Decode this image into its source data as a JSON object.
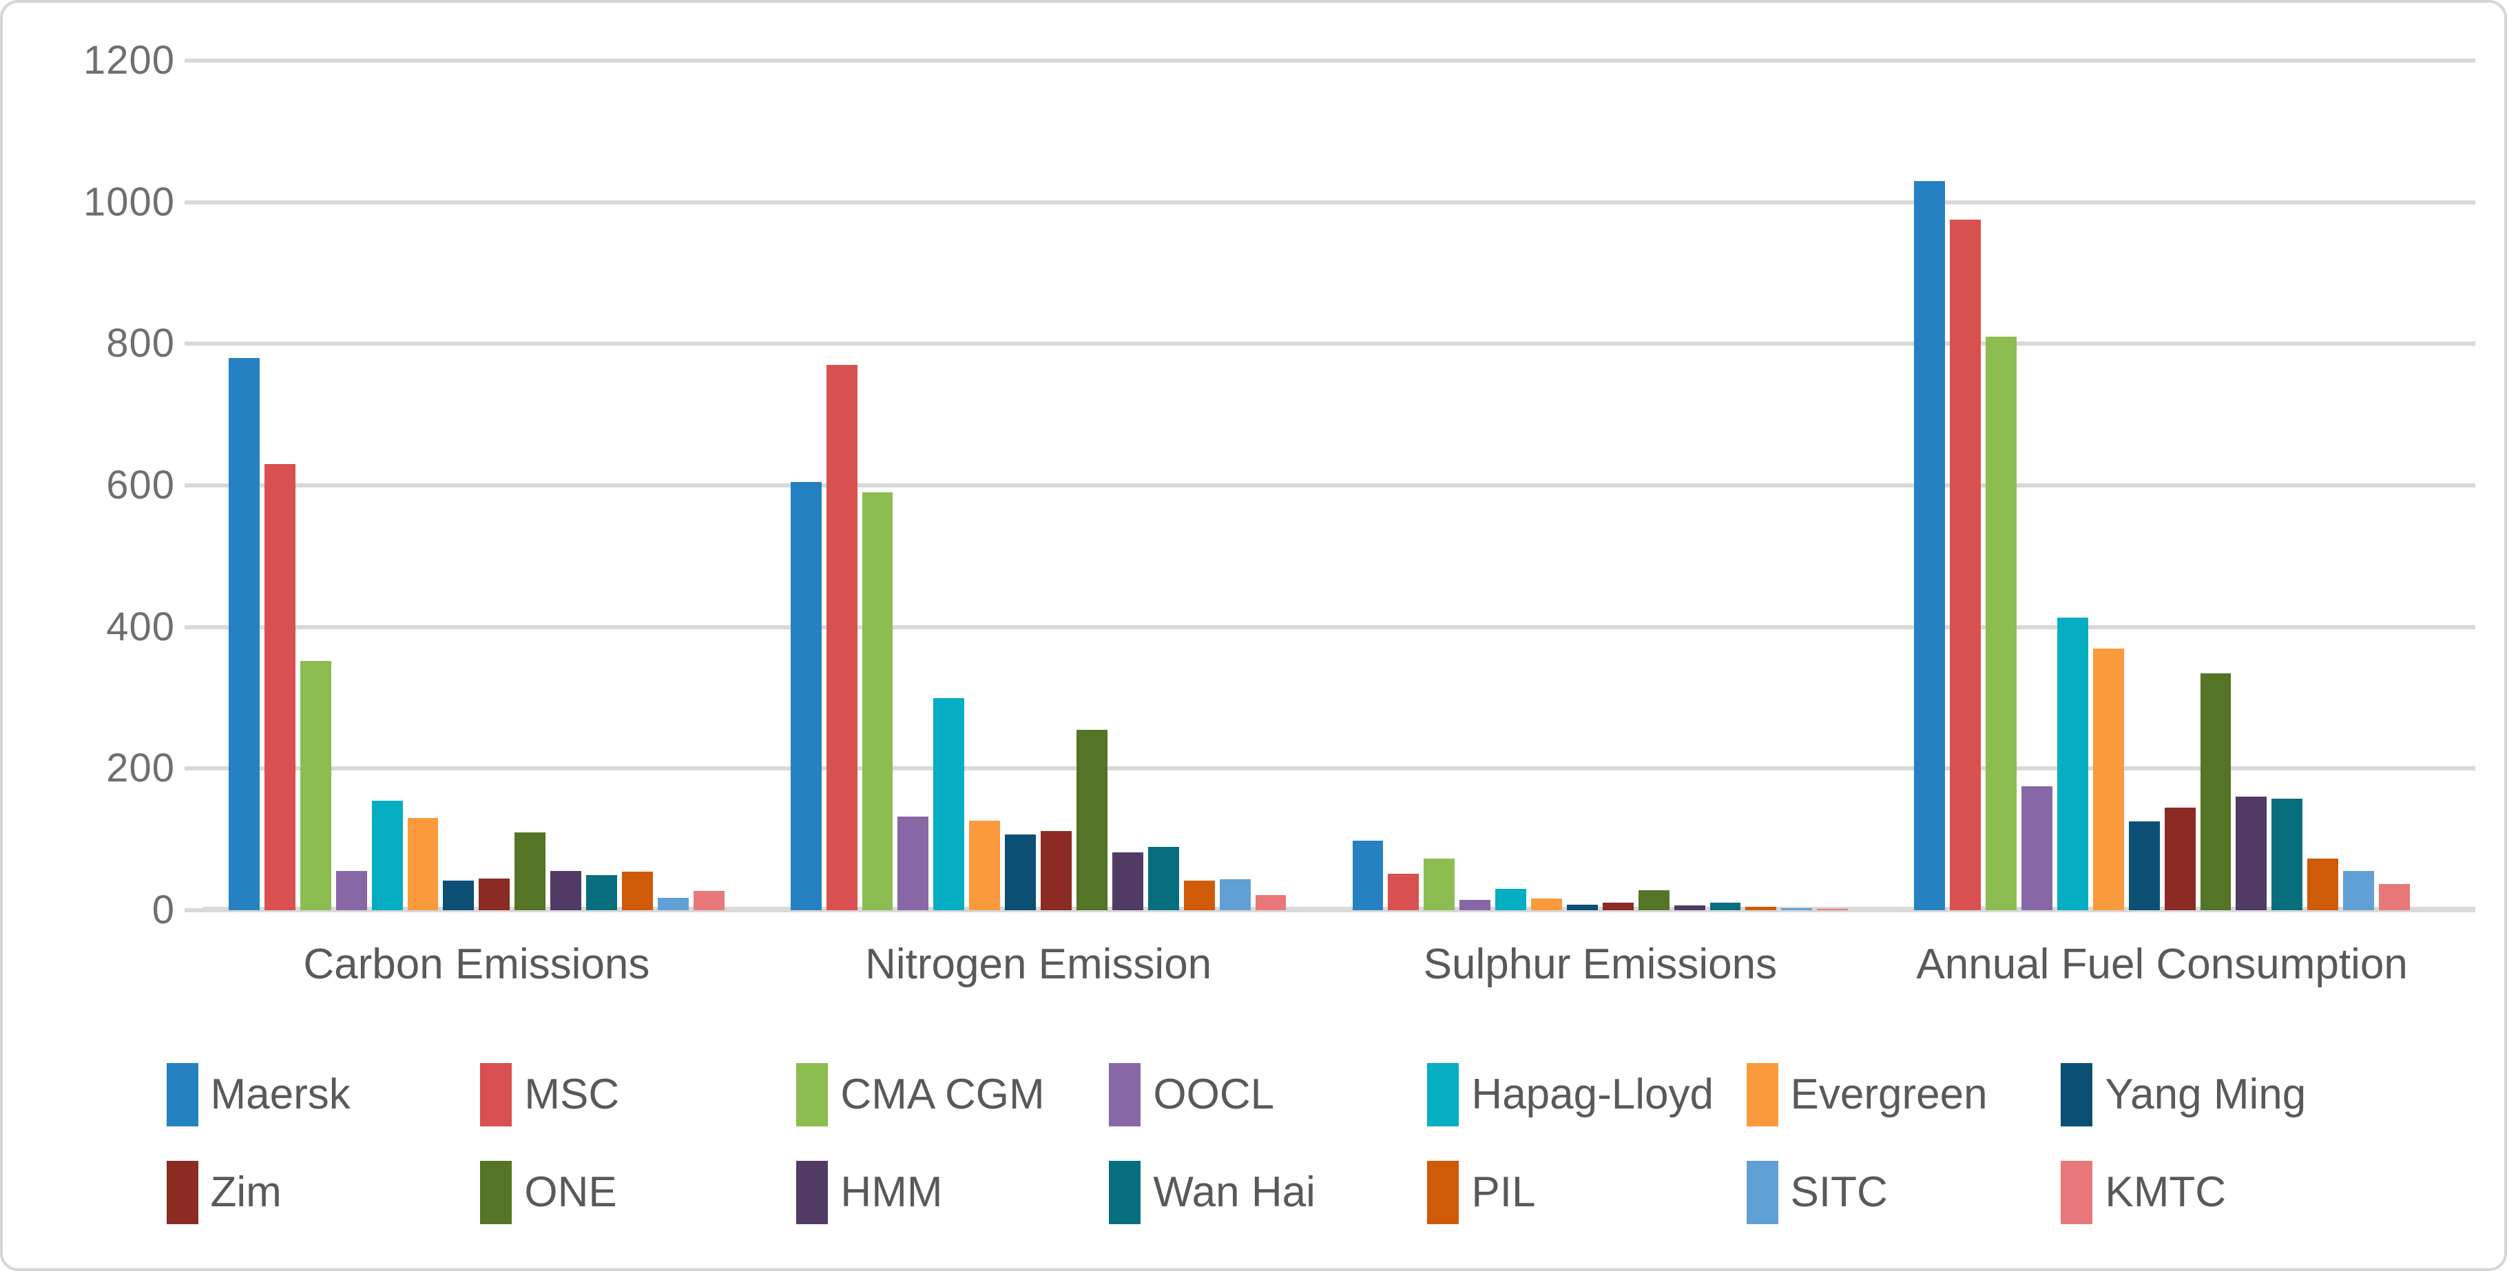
{
  "chart_data": {
    "type": "bar",
    "title": "",
    "xlabel": "",
    "ylabel": "",
    "ylim": [
      0,
      1200
    ],
    "yticks": [
      0,
      200,
      400,
      600,
      800,
      1000,
      1200
    ],
    "grid": "horizontal",
    "legend_position": "bottom",
    "gridline_color": "#d9d9d9",
    "tick_label_color": "#6f6f6f",
    "category_label_color": "#595959",
    "categories": [
      "Carbon Emissions",
      "Nitrogen Emission",
      "Sulphur Emissions",
      "Annual Fuel Consumption"
    ],
    "series": [
      {
        "name": "Maersk",
        "color": "#2681C2",
        "values": [
          780,
          605,
          98,
          1030
        ]
      },
      {
        "name": "MSC",
        "color": "#D95050",
        "values": [
          630,
          770,
          52,
          975
        ]
      },
      {
        "name": "CMA CGM",
        "color": "#8DBC51",
        "values": [
          352,
          590,
          73,
          810
        ]
      },
      {
        "name": "OOCL",
        "color": "#8767A6",
        "values": [
          55,
          132,
          15,
          175
        ]
      },
      {
        "name": "Hapag-Lloyd",
        "color": "#06AEC3",
        "values": [
          155,
          300,
          30,
          413
        ]
      },
      {
        "name": "Evergreen",
        "color": "#FB9A3C",
        "values": [
          130,
          126,
          17,
          370
        ]
      },
      {
        "name": "Yang Ming",
        "color": "#0B4F75",
        "values": [
          42,
          107,
          8,
          125
        ]
      },
      {
        "name": "Zim",
        "color": "#8C2A24",
        "values": [
          45,
          112,
          11,
          145
        ]
      },
      {
        "name": "ONE",
        "color": "#547426",
        "values": [
          110,
          255,
          28,
          335
        ]
      },
      {
        "name": "HMM",
        "color": "#513A64",
        "values": [
          55,
          82,
          7,
          160
        ]
      },
      {
        "name": "Wan Hai",
        "color": "#076E7E",
        "values": [
          50,
          89,
          11,
          158
        ]
      },
      {
        "name": "PIL",
        "color": "#CF5A08",
        "values": [
          54,
          42,
          5,
          73
        ]
      },
      {
        "name": "SITC",
        "color": "#60A0D4",
        "values": [
          18,
          44,
          3,
          55
        ]
      },
      {
        "name": "KMTC",
        "color": "#E87879",
        "values": [
          27,
          21,
          2,
          37
        ]
      }
    ]
  }
}
